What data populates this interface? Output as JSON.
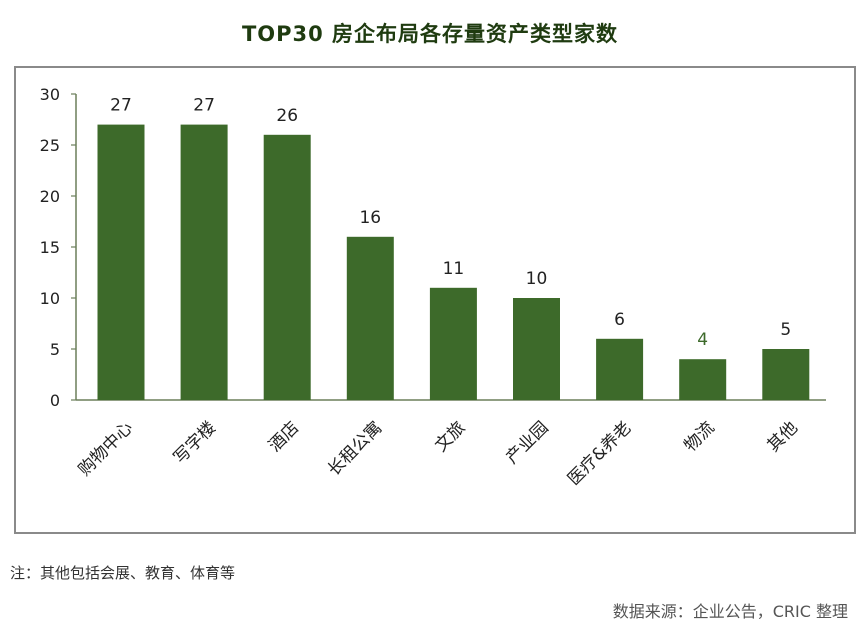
{
  "title": "TOP30 房企布局各存量资产类型家数",
  "note": "注：其他包括会展、教育、体育等",
  "source": "数据来源：企业公告，CRIC 整理",
  "colors": {
    "bar": "#3d6a2a",
    "axis": "#6b7f5a",
    "title": "#1f3b10",
    "label_highlight": "#3d6a2a"
  },
  "chart_data": {
    "type": "bar",
    "title": "TOP30 房企布局各存量资产类型家数",
    "categories": [
      "购物中心",
      "写字楼",
      "酒店",
      "长租公寓",
      "文旅",
      "产业园",
      "医疗&养老",
      "物流",
      "其他"
    ],
    "values": [
      27,
      27,
      26,
      16,
      11,
      10,
      6,
      4,
      5
    ],
    "data_labels": [
      "27",
      "27",
      "26",
      "16",
      "11",
      "10",
      "6",
      "4",
      "5"
    ],
    "ylim": [
      0,
      30
    ],
    "yticks": [
      "0",
      "5",
      "10",
      "15",
      "20",
      "25",
      "30"
    ],
    "xlabel": "",
    "ylabel": "",
    "grid": false,
    "legend": "none"
  }
}
